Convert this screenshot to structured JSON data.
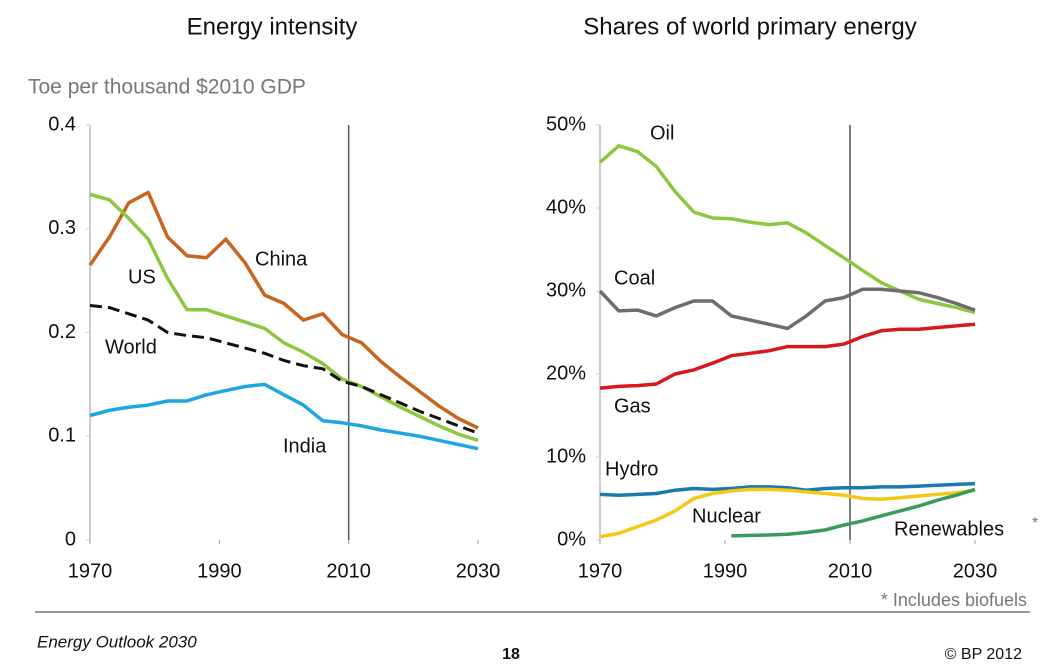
{
  "chart_data": [
    {
      "type": "line",
      "title": "Energy intensity",
      "y_label": "Toe per thousand $2010 GDP",
      "x": [
        1970,
        1973,
        1976,
        1979,
        1982,
        1985,
        1988,
        1991,
        1994,
        1997,
        2000,
        2003,
        2006,
        2009,
        2012,
        2015,
        2018,
        2021,
        2024,
        2027,
        2030
      ],
      "xlim": [
        1970,
        2030
      ],
      "xticks": [
        1970,
        1990,
        2010,
        2030
      ],
      "ylim": [
        0,
        0.4
      ],
      "yticks": [
        0,
        0.1,
        0.2,
        0.3,
        0.4
      ],
      "vline": 2010,
      "series": [
        {
          "name": "China",
          "color": "#c9641f",
          "values": [
            0.265,
            0.292,
            0.325,
            0.335,
            0.292,
            0.274,
            0.272,
            0.29,
            0.267,
            0.236,
            0.228,
            0.212,
            0.218,
            0.198,
            0.19,
            0.172,
            0.157,
            0.143,
            0.129,
            0.117,
            0.108
          ]
        },
        {
          "name": "US",
          "color": "#8dc63f",
          "values": [
            0.333,
            0.328,
            0.31,
            0.29,
            0.252,
            0.222,
            0.222,
            0.216,
            0.21,
            0.204,
            0.19,
            0.181,
            0.17,
            0.155,
            0.148,
            0.138,
            0.128,
            0.119,
            0.11,
            0.102,
            0.096
          ]
        },
        {
          "name": "World",
          "color": "#111111",
          "style": "dashed",
          "values": [
            0.226,
            0.224,
            0.218,
            0.212,
            0.2,
            0.197,
            0.195,
            0.19,
            0.185,
            0.18,
            0.173,
            0.168,
            0.165,
            0.153,
            0.148,
            0.14,
            0.132,
            0.124,
            0.117,
            0.11,
            0.103
          ]
        },
        {
          "name": "India",
          "color": "#1fa6e0",
          "values": [
            0.12,
            0.125,
            0.128,
            0.13,
            0.134,
            0.134,
            0.14,
            0.144,
            0.148,
            0.15,
            0.14,
            0.13,
            0.115,
            0.113,
            0.11,
            0.106,
            0.103,
            0.1,
            0.096,
            0.092,
            0.088
          ]
        }
      ]
    },
    {
      "type": "line",
      "title": "Shares of world primary energy",
      "x": [
        1970,
        1973,
        1976,
        1979,
        1982,
        1985,
        1988,
        1991,
        1994,
        1997,
        2000,
        2003,
        2006,
        2009,
        2012,
        2015,
        2018,
        2021,
        2024,
        2027,
        2030
      ],
      "xlim": [
        1970,
        2030
      ],
      "xticks": [
        1970,
        1990,
        2010,
        2030
      ],
      "ylim": [
        0,
        50
      ],
      "yticks": [
        {
          "value": 0,
          "label": "0%"
        },
        {
          "value": 10,
          "label": "10%"
        },
        {
          "value": 20,
          "label": "20%"
        },
        {
          "value": 30,
          "label": "30%"
        },
        {
          "value": 40,
          "label": "40%"
        },
        {
          "value": 50,
          "label": "50%"
        }
      ],
      "vline": 2010,
      "series": [
        {
          "name": "Oil",
          "color": "#8dc63f",
          "values": [
            45.5,
            47.5,
            46.8,
            45,
            42,
            39.5,
            38.8,
            38.7,
            38.3,
            38,
            38.2,
            37,
            35.5,
            34,
            32.5,
            31,
            30,
            29,
            28.5,
            28,
            27.4
          ]
        },
        {
          "name": "Coal",
          "color": "#6d6d6d",
          "values": [
            30,
            27.6,
            27.7,
            27,
            28,
            28.8,
            28.8,
            27,
            26.5,
            26,
            25.5,
            27,
            28.8,
            29.2,
            30.2,
            30.2,
            30,
            29.8,
            29.2,
            28.5,
            27.7
          ]
        },
        {
          "name": "Gas",
          "color": "#d7191c",
          "values": [
            18.3,
            18.5,
            18.6,
            18.8,
            20,
            20.5,
            21.3,
            22.2,
            22.5,
            22.8,
            23.3,
            23.3,
            23.3,
            23.6,
            24.5,
            25.2,
            25.4,
            25.4,
            25.6,
            25.8,
            26
          ]
        },
        {
          "name": "Hydro",
          "color": "#1a7aab",
          "values": [
            5.5,
            5.4,
            5.5,
            5.6,
            6,
            6.2,
            6.1,
            6.2,
            6.4,
            6.4,
            6.3,
            6,
            6.2,
            6.3,
            6.3,
            6.4,
            6.4,
            6.5,
            6.6,
            6.7,
            6.8
          ]
        },
        {
          "name": "Nuclear",
          "color": "#f5c818",
          "values": [
            0.4,
            0.8,
            1.6,
            2.4,
            3.5,
            5,
            5.6,
            5.9,
            6.1,
            6.1,
            6,
            5.8,
            5.6,
            5.4,
            5,
            4.9,
            5.1,
            5.3,
            5.5,
            5.7,
            6
          ]
        },
        {
          "name": "Renewables",
          "note_marker": "*",
          "color": "#3a9a5a",
          "values": [
            null,
            null,
            null,
            null,
            null,
            null,
            null,
            0.5,
            0.55,
            0.6,
            0.7,
            0.9,
            1.2,
            1.8,
            2.3,
            2.9,
            3.5,
            4.1,
            4.8,
            5.4,
            6.1
          ]
        }
      ]
    }
  ],
  "footnote": "* Includes biofuels",
  "footer": {
    "publication": "Energy Outlook 2030",
    "page": "18",
    "copyright": "© BP 2012"
  }
}
